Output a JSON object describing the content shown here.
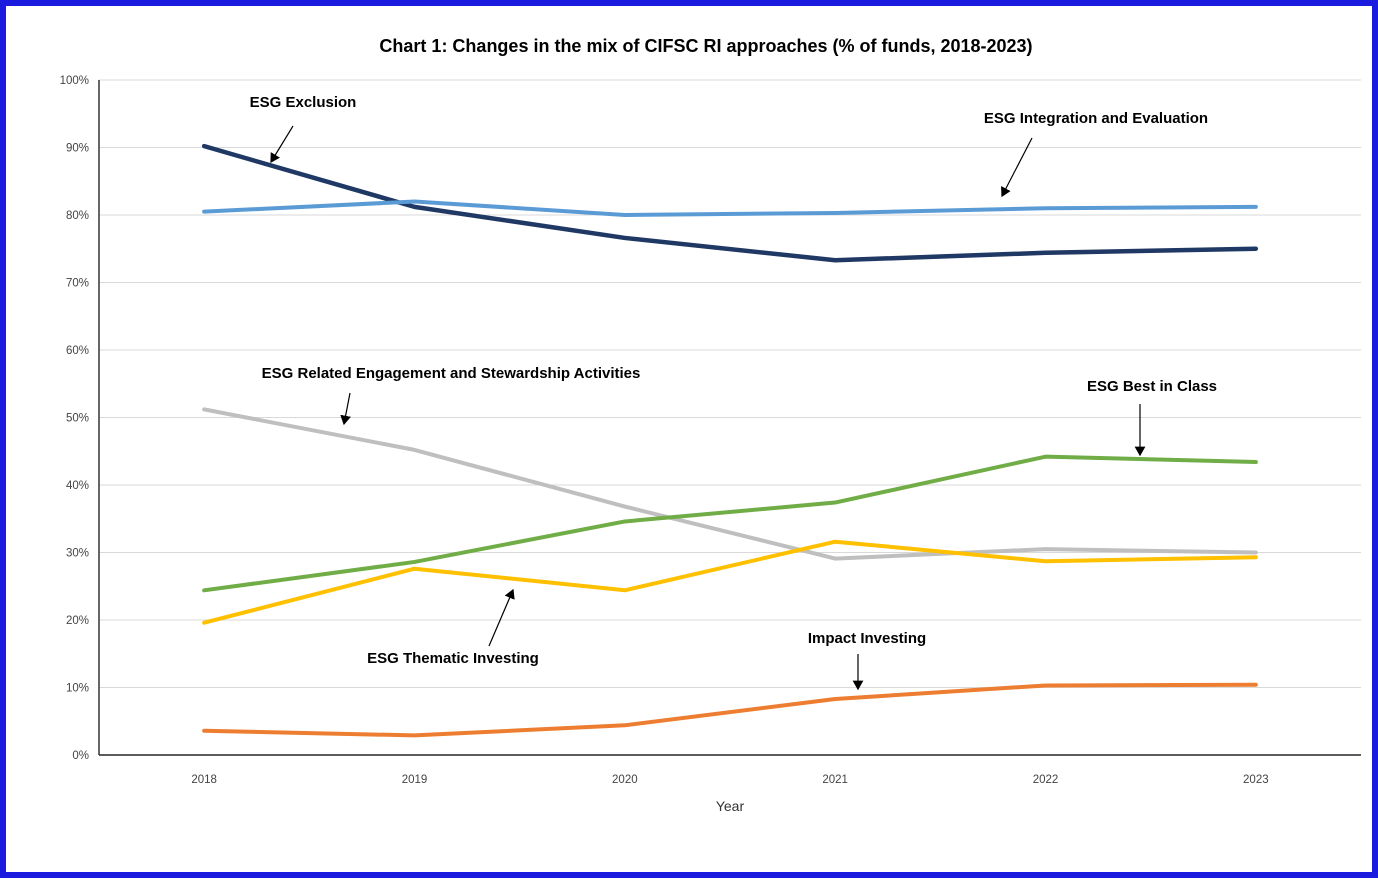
{
  "window": {
    "frame_border_color": "#1b1be0",
    "background_color": "#ffffff"
  },
  "chart_data": {
    "type": "line",
    "title": "Chart 1: Changes in the mix of CIFSC RI approaches (% of funds, 2018-2023)",
    "xlabel": "Year",
    "ylabel": "",
    "categories": [
      "2018",
      "2019",
      "2020",
      "2021",
      "2022",
      "2023"
    ],
    "y_tick_labels": [
      "0%",
      "10%",
      "20%",
      "30%",
      "40%",
      "50%",
      "60%",
      "70%",
      "80%",
      "90%",
      "100%"
    ],
    "ylim": [
      0,
      100
    ],
    "grid": "horizontal-only",
    "legend": "none",
    "gridline_color": "#d9d9d9",
    "axis_color": "#262626",
    "series": [
      {
        "name": "ESG Exclusion",
        "color": "#1F3864",
        "values": [
          90.2,
          81.2,
          76.6,
          73.3,
          74.4,
          75.0
        ]
      },
      {
        "name": "ESG Integration and Evaluation",
        "color": "#5B9BD5",
        "values": [
          80.5,
          82.0,
          80.0,
          80.3,
          81.0,
          81.2
        ]
      },
      {
        "name": "ESG Related Engagement and Stewardship Activities",
        "color": "#BFBFBF",
        "values": [
          51.2,
          45.2,
          36.8,
          29.1,
          30.5,
          30.0
        ]
      },
      {
        "name": "ESG Best in Class",
        "color": "#70AD47",
        "values": [
          24.4,
          28.6,
          34.6,
          37.4,
          44.2,
          43.4
        ]
      },
      {
        "name": "ESG Thematic Investing",
        "color": "#FFC000",
        "values": [
          19.6,
          27.6,
          24.4,
          31.6,
          28.7,
          29.3
        ]
      },
      {
        "name": "Impact Investing",
        "color": "#ED7D31",
        "values": [
          3.6,
          2.9,
          4.4,
          8.3,
          10.3,
          10.4
        ]
      }
    ],
    "annotations": [
      {
        "label": "ESG Exclusion"
      },
      {
        "label": "ESG Integration and Evaluation"
      },
      {
        "label": "ESG Related Engagement and Stewardship Activities"
      },
      {
        "label": "ESG Best in Class"
      },
      {
        "label": "ESG Thematic Investing"
      },
      {
        "label": "Impact Investing"
      }
    ]
  }
}
